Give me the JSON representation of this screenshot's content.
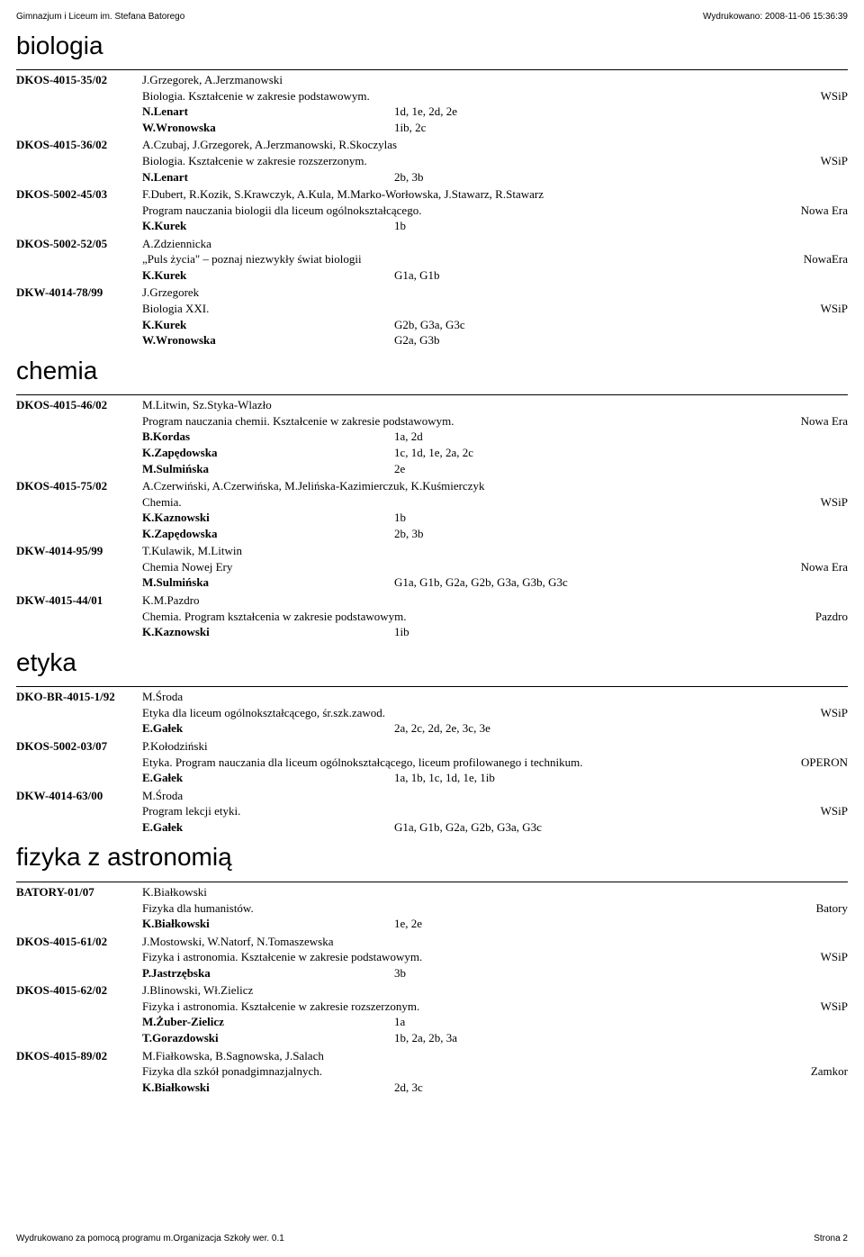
{
  "header": {
    "left": "Gimnazjum i Liceum im. Stefana Batorego",
    "right": "Wydrukowano: 2008-11-06 15:36:39"
  },
  "footer": {
    "left": "Wydrukowano za pomocą programu m.Organizacja Szkoły wer. 0.1",
    "right": "Strona 2"
  },
  "sections": [
    {
      "subject": "biologia",
      "entries": [
        {
          "code": "DKOS-4015-35/02",
          "authors": "J.Grzegorek, A.Jerzmanowski",
          "title": "Biologia. Kształcenie w zakresie podstawowym.",
          "publisher": "WSiP",
          "teachers": [
            {
              "name": "N.Lenart",
              "groups": "1d, 1e, 2d, 2e"
            },
            {
              "name": "W.Wronowska",
              "groups": "1ib, 2c"
            }
          ]
        },
        {
          "code": "DKOS-4015-36/02",
          "authors": "A.Czubaj, J.Grzegorek, A.Jerzmanowski, R.Skoczylas",
          "title": "Biologia. Kształcenie w zakresie rozszerzonym.",
          "publisher": "WSiP",
          "teachers": [
            {
              "name": "N.Lenart",
              "groups": "2b, 3b"
            }
          ]
        },
        {
          "code": "DKOS-5002-45/03",
          "authors": "F.Dubert, R.Kozik, S.Krawczyk, A.Kula, M.Marko-Worłowska, J.Stawarz, R.Stawarz",
          "title": "Program nauczania biologii dla liceum ogólnokształcącego.",
          "publisher": "Nowa Era",
          "teachers": [
            {
              "name": "K.Kurek",
              "groups": "1b"
            }
          ]
        },
        {
          "code": "DKOS-5002-52/05",
          "authors": "A.Zdziennicka",
          "title": "„Puls życia\" – poznaj niezwykły świat biologii",
          "publisher": "NowaEra",
          "teachers": [
            {
              "name": "K.Kurek",
              "groups": "G1a, G1b"
            }
          ]
        },
        {
          "code": "DKW-4014-78/99",
          "authors": "J.Grzegorek",
          "title": "Biologia XXI.",
          "publisher": "WSiP",
          "teachers": [
            {
              "name": "K.Kurek",
              "groups": "G2b, G3a, G3c"
            },
            {
              "name": "W.Wronowska",
              "groups": "G2a, G3b"
            }
          ]
        }
      ]
    },
    {
      "subject": "chemia",
      "entries": [
        {
          "code": "DKOS-4015-46/02",
          "authors": "M.Litwin, Sz.Styka-Wlazło",
          "title": "Program nauczania chemii. Kształcenie w zakresie podstawowym.",
          "publisher": "Nowa Era",
          "teachers": [
            {
              "name": "B.Kordas",
              "groups": "1a, 2d"
            },
            {
              "name": "K.Zapędowska",
              "groups": "1c, 1d, 1e, 2a, 2c"
            },
            {
              "name": "M.Sulmińska",
              "groups": "2e"
            }
          ]
        },
        {
          "code": "DKOS-4015-75/02",
          "authors": "A.Czerwiński, A.Czerwińska, M.Jelińska-Kazimierczuk, K.Kuśmierczyk",
          "title": "Chemia.",
          "publisher": "WSiP",
          "teachers": [
            {
              "name": "K.Kaznowski",
              "groups": "1b"
            },
            {
              "name": "K.Zapędowska",
              "groups": "2b, 3b"
            }
          ]
        },
        {
          "code": "DKW-4014-95/99",
          "authors": "T.Kulawik, M.Litwin",
          "title": "Chemia Nowej Ery",
          "publisher": "Nowa Era",
          "teachers": [
            {
              "name": "M.Sulmińska",
              "groups": "G1a, G1b, G2a, G2b, G3a, G3b, G3c"
            }
          ]
        },
        {
          "code": "DKW-4015-44/01",
          "authors": "K.M.Pazdro",
          "title": "Chemia. Program kształcenia w zakresie podstawowym.",
          "publisher": "Pazdro",
          "teachers": [
            {
              "name": "K.Kaznowski",
              "groups": "1ib"
            }
          ]
        }
      ]
    },
    {
      "subject": "etyka",
      "entries": [
        {
          "code": "DKO-BR-4015-1/92",
          "authors": "M.Środa",
          "title": "Etyka dla liceum ogólnokształcącego, śr.szk.zawod.",
          "publisher": "WSiP",
          "teachers": [
            {
              "name": "E.Gałek",
              "groups": "2a, 2c, 2d, 2e, 3c, 3e"
            }
          ]
        },
        {
          "code": "DKOS-5002-03/07",
          "authors": "P.Kołodziński",
          "title": "Etyka. Program nauczania dla liceum ogólnokształcącego, liceum profilowanego i technikum.",
          "publisher": "OPERON",
          "teachers": [
            {
              "name": "E.Gałek",
              "groups": "1a, 1b, 1c, 1d, 1e, 1ib"
            }
          ]
        },
        {
          "code": "DKW-4014-63/00",
          "authors": "M.Środa",
          "title": "Program lekcji etyki.",
          "publisher": "WSiP",
          "teachers": [
            {
              "name": "E.Gałek",
              "groups": "G1a, G1b, G2a, G2b, G3a, G3c"
            }
          ]
        }
      ]
    },
    {
      "subject": "fizyka z astronomią",
      "entries": [
        {
          "code": "BATORY-01/07",
          "authors": "K.Białkowski",
          "title": "Fizyka dla humanistów.",
          "publisher": "Batory",
          "teachers": [
            {
              "name": "K.Białkowski",
              "groups": "1e, 2e"
            }
          ]
        },
        {
          "code": "DKOS-4015-61/02",
          "authors": "J.Mostowski, W.Natorf, N.Tomaszewska",
          "title": "Fizyka i astronomia. Kształcenie w zakresie podstawowym.",
          "publisher": "WSiP",
          "teachers": [
            {
              "name": "P.Jastrzębska",
              "groups": "3b"
            }
          ]
        },
        {
          "code": "DKOS-4015-62/02",
          "authors": "J.Blinowski, Wł.Zielicz",
          "title": "Fizyka i astronomia. Kształcenie w zakresie rozszerzonym.",
          "publisher": "WSiP",
          "teachers": [
            {
              "name": "M.Żuber-Zielicz",
              "groups": "1a"
            },
            {
              "name": "T.Gorazdowski",
              "groups": "1b, 2a, 2b, 3a"
            }
          ]
        },
        {
          "code": "DKOS-4015-89/02",
          "authors": "M.Fiałkowska, B.Sagnowska, J.Salach",
          "title": "Fizyka dla szkół ponadgimnazjalnych.",
          "publisher": "Zamkor",
          "teachers": [
            {
              "name": "K.Białkowski",
              "groups": "2d, 3c"
            }
          ]
        }
      ]
    }
  ]
}
